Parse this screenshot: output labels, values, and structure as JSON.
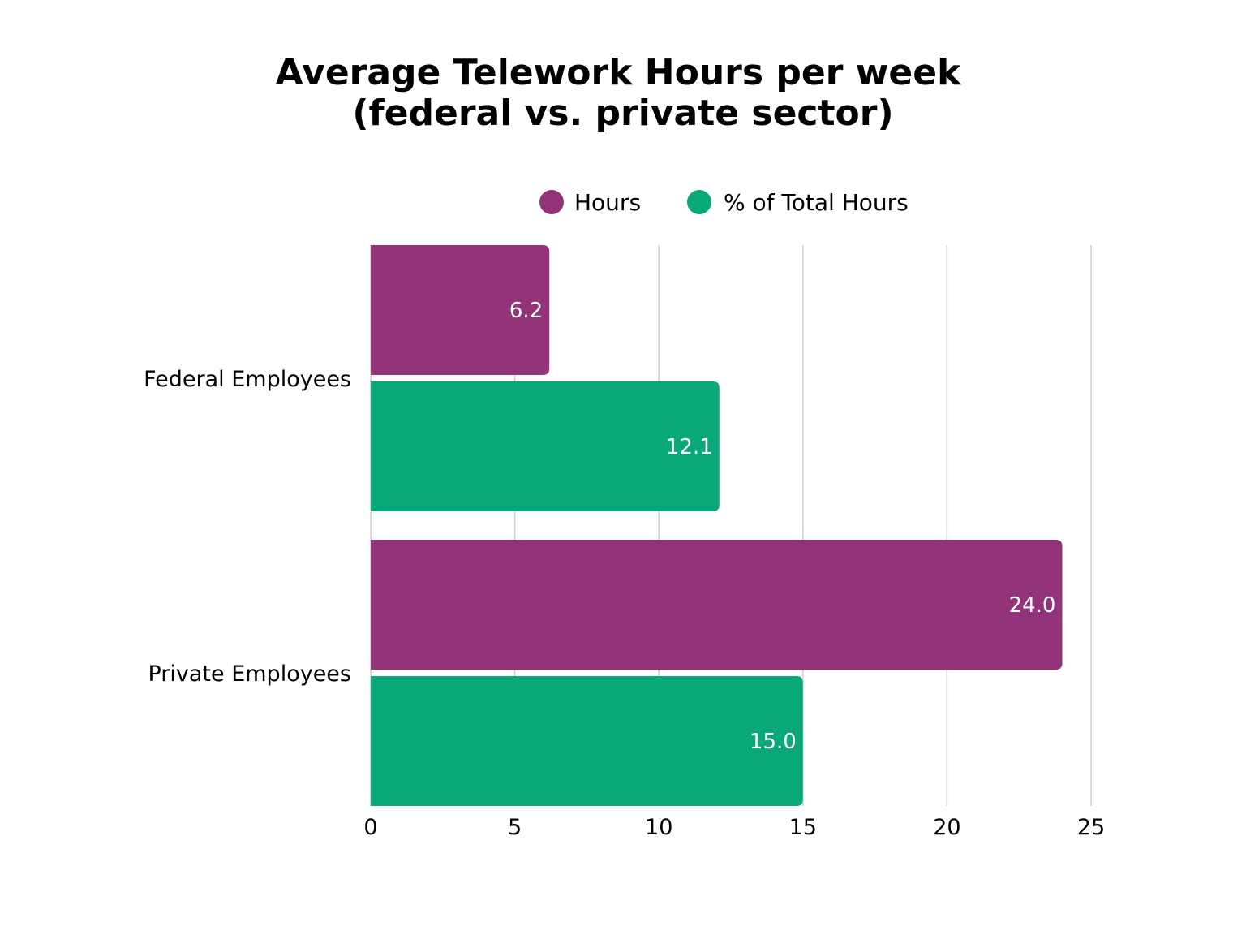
{
  "chart_data": {
    "type": "bar",
    "orientation": "horizontal",
    "title_lines": [
      "Average Telework Hours per week",
      "(federal vs. private sector)"
    ],
    "categories": [
      "Federal Employees",
      "Private Employees"
    ],
    "series": [
      {
        "name": "Hours",
        "values": [
          6.2,
          24.0
        ],
        "labels": [
          "6.2",
          "24.0"
        ],
        "color": "#93337a"
      },
      {
        "name": "% of Total Hours",
        "values": [
          12.1,
          15.0
        ],
        "labels": [
          "12.1",
          "15.0"
        ],
        "color": "#08a878"
      }
    ],
    "xlim": [
      0,
      25
    ],
    "xticks": [
      0,
      5,
      10,
      15,
      20,
      25
    ],
    "xtick_labels": [
      "0",
      "5",
      "10",
      "15",
      "20",
      "25"
    ],
    "grid": true,
    "legend_position": "top-right"
  }
}
